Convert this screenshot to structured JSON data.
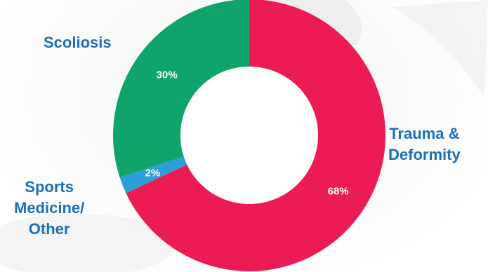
{
  "chart_data": {
    "type": "pie",
    "donut": true,
    "categories": [
      "Trauma & Deformity",
      "Sports Medicine/ Other",
      "Scoliosis"
    ],
    "values": [
      68,
      2,
      30
    ],
    "value_labels": [
      "68%",
      "2%",
      "30%"
    ],
    "category_label_lines": [
      [
        "Trauma &",
        "Deformity"
      ],
      [
        "Sports",
        "Medicine/",
        "Other"
      ],
      [
        "Scoliosis"
      ]
    ],
    "colors": [
      "#ec1b54",
      "#2d9fd8",
      "#0ea46a"
    ],
    "label_color": "#1c6fb6",
    "title": "",
    "legend": "none (labels placed around the ring)"
  }
}
